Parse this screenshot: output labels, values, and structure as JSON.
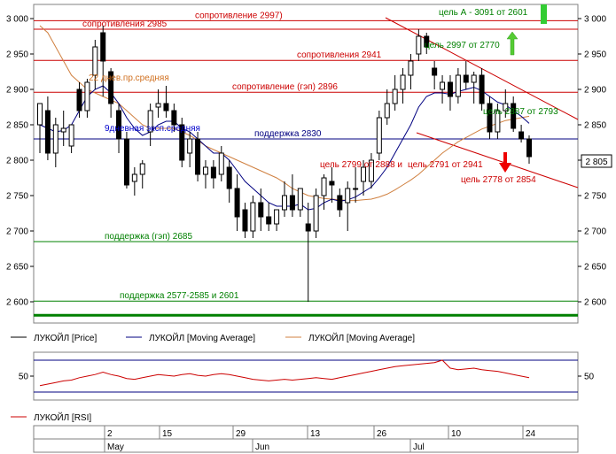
{
  "chart_data": {
    "type": "candlestick",
    "price_panel": {
      "ylim": [
        2570,
        3020
      ],
      "y_ticks": [
        3000,
        2950,
        2900,
        2850,
        2800,
        2750,
        2700,
        2650,
        2600
      ],
      "y_tick_labels": [
        "3 000",
        "2 950",
        "2 900",
        "2 850",
        "2 800",
        "2 750",
        "2 700",
        "2 650",
        "2 600"
      ],
      "last_price_label": "2 805",
      "last_price": 2805,
      "candles": [
        {
          "o": 2850,
          "h": 2880,
          "l": 2810,
          "c": 2880
        },
        {
          "o": 2870,
          "h": 2890,
          "l": 2800,
          "c": 2810
        },
        {
          "o": 2810,
          "h": 2860,
          "l": 2790,
          "c": 2850
        },
        {
          "o": 2840,
          "h": 2870,
          "l": 2820,
          "c": 2845
        },
        {
          "o": 2820,
          "h": 2850,
          "l": 2810,
          "c": 2850
        },
        {
          "o": 2900,
          "h": 2910,
          "l": 2860,
          "c": 2870
        },
        {
          "o": 2870,
          "h": 2915,
          "l": 2860,
          "c": 2910
        },
        {
          "o": 2920,
          "h": 2970,
          "l": 2900,
          "c": 2960
        },
        {
          "o": 2980,
          "h": 2990,
          "l": 2890,
          "c": 2940
        },
        {
          "o": 2925,
          "h": 2930,
          "l": 2860,
          "c": 2880
        },
        {
          "o": 2870,
          "h": 2880,
          "l": 2810,
          "c": 2830
        },
        {
          "o": 2830,
          "h": 2840,
          "l": 2760,
          "c": 2765
        },
        {
          "o": 2770,
          "h": 2790,
          "l": 2750,
          "c": 2780
        },
        {
          "o": 2780,
          "h": 2800,
          "l": 2760,
          "c": 2795
        },
        {
          "o": 2840,
          "h": 2880,
          "l": 2820,
          "c": 2870
        },
        {
          "o": 2875,
          "h": 2900,
          "l": 2860,
          "c": 2880
        },
        {
          "o": 2880,
          "h": 2905,
          "l": 2860,
          "c": 2870
        },
        {
          "o": 2870,
          "h": 2880,
          "l": 2840,
          "c": 2850
        },
        {
          "o": 2850,
          "h": 2860,
          "l": 2790,
          "c": 2800
        },
        {
          "o": 2810,
          "h": 2840,
          "l": 2790,
          "c": 2830
        },
        {
          "o": 2830,
          "h": 2840,
          "l": 2770,
          "c": 2780
        },
        {
          "o": 2780,
          "h": 2800,
          "l": 2760,
          "c": 2790
        },
        {
          "o": 2790,
          "h": 2800,
          "l": 2760,
          "c": 2775
        },
        {
          "o": 2780,
          "h": 2820,
          "l": 2770,
          "c": 2810
        },
        {
          "o": 2790,
          "h": 2800,
          "l": 2740,
          "c": 2760
        },
        {
          "o": 2760,
          "h": 2780,
          "l": 2700,
          "c": 2720
        },
        {
          "o": 2730,
          "h": 2740,
          "l": 2690,
          "c": 2700
        },
        {
          "o": 2700,
          "h": 2750,
          "l": 2690,
          "c": 2740
        },
        {
          "o": 2740,
          "h": 2760,
          "l": 2700,
          "c": 2720
        },
        {
          "o": 2720,
          "h": 2740,
          "l": 2700,
          "c": 2710
        },
        {
          "o": 2710,
          "h": 2730,
          "l": 2700,
          "c": 2730
        },
        {
          "o": 2730,
          "h": 2770,
          "l": 2720,
          "c": 2750
        },
        {
          "o": 2750,
          "h": 2780,
          "l": 2720,
          "c": 2730
        },
        {
          "o": 2730,
          "h": 2760,
          "l": 2720,
          "c": 2760
        },
        {
          "o": 2710,
          "h": 2740,
          "l": 2600,
          "c": 2700
        },
        {
          "o": 2700,
          "h": 2760,
          "l": 2690,
          "c": 2750
        },
        {
          "o": 2750,
          "h": 2780,
          "l": 2730,
          "c": 2775
        },
        {
          "o": 2770,
          "h": 2790,
          "l": 2740,
          "c": 2765
        },
        {
          "o": 2750,
          "h": 2760,
          "l": 2720,
          "c": 2730
        },
        {
          "o": 2740,
          "h": 2770,
          "l": 2700,
          "c": 2760
        },
        {
          "o": 2760,
          "h": 2790,
          "l": 2740,
          "c": 2760
        },
        {
          "o": 2770,
          "h": 2800,
          "l": 2750,
          "c": 2790
        },
        {
          "o": 2770,
          "h": 2810,
          "l": 2760,
          "c": 2800
        },
        {
          "o": 2810,
          "h": 2870,
          "l": 2800,
          "c": 2860
        },
        {
          "o": 2860,
          "h": 2900,
          "l": 2850,
          "c": 2880
        },
        {
          "o": 2880,
          "h": 2920,
          "l": 2870,
          "c": 2900
        },
        {
          "o": 2900,
          "h": 2930,
          "l": 2880,
          "c": 2920
        },
        {
          "o": 2920,
          "h": 2950,
          "l": 2900,
          "c": 2940
        },
        {
          "o": 2950,
          "h": 2985,
          "l": 2940,
          "c": 2975
        },
        {
          "o": 2975,
          "h": 2980,
          "l": 2950,
          "c": 2960
        },
        {
          "o": 2930,
          "h": 2940,
          "l": 2900,
          "c": 2920
        },
        {
          "o": 2900,
          "h": 2920,
          "l": 2880,
          "c": 2910
        },
        {
          "o": 2910,
          "h": 2920,
          "l": 2870,
          "c": 2890
        },
        {
          "o": 2890,
          "h": 2930,
          "l": 2880,
          "c": 2920
        },
        {
          "o": 2920,
          "h": 2940,
          "l": 2900,
          "c": 2910
        },
        {
          "o": 2910,
          "h": 2925,
          "l": 2880,
          "c": 2920
        },
        {
          "o": 2920,
          "h": 2930,
          "l": 2870,
          "c": 2880
        },
        {
          "o": 2880,
          "h": 2890,
          "l": 2830,
          "c": 2840
        },
        {
          "o": 2840,
          "h": 2880,
          "l": 2830,
          "c": 2870
        },
        {
          "o": 2870,
          "h": 2900,
          "l": 2860,
          "c": 2880
        },
        {
          "o": 2880,
          "h": 2890,
          "l": 2840,
          "c": 2845
        },
        {
          "o": 2840,
          "h": 2850,
          "l": 2825,
          "c": 2830
        },
        {
          "o": 2830,
          "h": 2835,
          "l": 2795,
          "c": 2805
        }
      ],
      "ema_9": [
        2850,
        2845,
        2840,
        2842,
        2850,
        2870,
        2890,
        2900,
        2905,
        2895,
        2880,
        2860,
        2845,
        2835,
        2840,
        2850,
        2855,
        2855,
        2845,
        2840,
        2830,
        2820,
        2810,
        2810,
        2800,
        2785,
        2770,
        2760,
        2750,
        2740,
        2735,
        2735,
        2735,
        2738,
        2730,
        2732,
        2740,
        2745,
        2742,
        2744,
        2748,
        2755,
        2762,
        2775,
        2790,
        2810,
        2830,
        2850,
        2875,
        2890,
        2895,
        2895,
        2893,
        2897,
        2900,
        2903,
        2898,
        2890,
        2882,
        2878,
        2870,
        2862,
        2852
      ],
      "ma_22": [
        2990,
        2980,
        2960,
        2940,
        2920,
        2910,
        2900,
        2895,
        2890,
        2885,
        2880,
        2870,
        2860,
        2850,
        2845,
        2845,
        2845,
        2845,
        2840,
        2835,
        2828,
        2820,
        2815,
        2810,
        2805,
        2800,
        2795,
        2790,
        2785,
        2780,
        2775,
        2768,
        2760,
        2755,
        2750,
        2748,
        2746,
        2745,
        2744,
        2743,
        2743,
        2744,
        2745,
        2748,
        2752,
        2758,
        2765,
        2772,
        2780,
        2790,
        2800,
        2810,
        2818,
        2826,
        2832,
        2838,
        2844,
        2848,
        2852,
        2856,
        2858,
        2860,
        2862
      ],
      "horizontal_lines": [
        {
          "level": 2997,
          "label": "сопротивление 2997)",
          "color": "#cc0000"
        },
        {
          "level": 2985,
          "label": "сопротивления 2985",
          "color": "#cc0000"
        },
        {
          "level": 2941,
          "label": "сопротивления 2941",
          "color": "#cc0000"
        },
        {
          "level": 2896,
          "label": "сопротивление (гэп) 2896",
          "color": "#cc0000"
        },
        {
          "level": 2830,
          "label": "поддержка  2830",
          "color": "#000080"
        },
        {
          "level": 2685,
          "label": "поддержка (гэп) 2685",
          "color": "#008000"
        },
        {
          "level": 2601,
          "label": "поддержка 2577-2585 и 2601",
          "color": "#008000"
        }
      ],
      "thick_support_level": 2581,
      "text_annotations": [
        {
          "text": "цель А - 3091 от 2601",
          "color": "#008000"
        },
        {
          "text": "цель 2997 от 2770",
          "color": "#008000"
        },
        {
          "text": "цель 2887 от 2793",
          "color": "#008000"
        },
        {
          "text": "цель 2799 от 2888 и",
          "color": "#cc0000"
        },
        {
          "text": "цель  2791 от 2941",
          "color": "#cc0000"
        },
        {
          "text": "цель 2778  от 2854",
          "color": "#cc0000"
        },
        {
          "text": "22 днев.пр.средняя",
          "color": "#d07020"
        },
        {
          "text": "9дневная эксп.средняя",
          "color": "#0000cc"
        }
      ]
    },
    "legend": [
      {
        "name": "ЛУКОЙЛ [Price]",
        "color": "#000000"
      },
      {
        "name": "ЛУКОЙЛ [Moving Average]",
        "color": "#000080"
      },
      {
        "name": "ЛУКОЙЛ [Moving Average]",
        "color": "#d08040"
      }
    ],
    "rsi_panel": {
      "name": "ЛУКОЙЛ [RSI]",
      "color": "#cc0000",
      "ylim": [
        20,
        80
      ],
      "tick": 50,
      "tick_label": "50",
      "bands": [
        70,
        30
      ],
      "values": [
        38,
        40,
        42,
        44,
        45,
        48,
        50,
        52,
        55,
        52,
        50,
        47,
        46,
        48,
        50,
        52,
        51,
        50,
        52,
        53,
        51,
        50,
        52,
        53,
        52,
        50,
        48,
        46,
        45,
        44,
        45,
        46,
        45,
        46,
        47,
        48,
        47,
        46,
        48,
        50,
        52,
        54,
        56,
        58,
        60,
        62,
        63,
        64,
        65,
        66,
        67,
        70,
        60,
        58,
        59,
        60,
        58,
        57,
        56,
        54,
        52,
        50,
        48
      ]
    },
    "x_axis": {
      "day_labels": [
        "2",
        "15",
        "29",
        "13",
        "26",
        "10",
        "24"
      ],
      "month_labels": [
        "May",
        "Jun",
        "Jul"
      ]
    }
  }
}
